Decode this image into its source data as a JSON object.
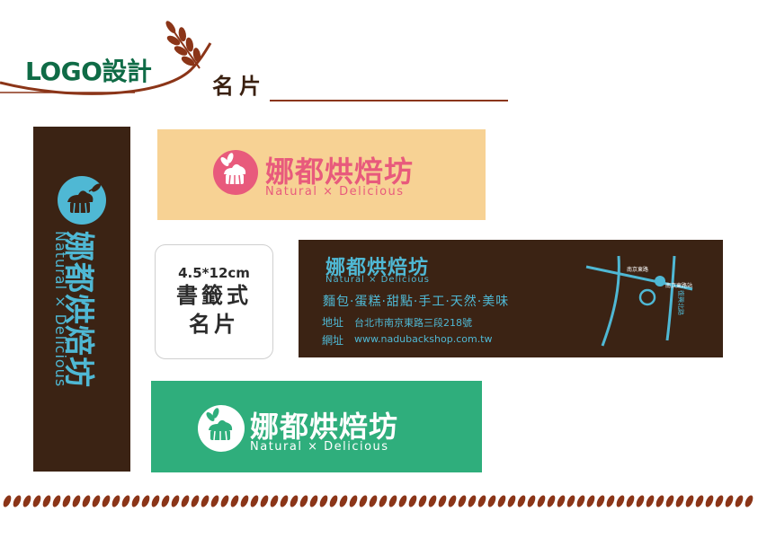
{
  "header": {
    "title": "LOGO設計",
    "subtitle": "名片"
  },
  "brand": {
    "name": "娜都烘焙坊",
    "tagline": "Natural × Delicious"
  },
  "spec": {
    "size": "4.5*12cm",
    "line1": "書籤式",
    "line2": "名片"
  },
  "dark_card": {
    "products": "麵包·蛋糕·甜點·手工·天然·美味",
    "address_label": "地址",
    "address": "台北市南京東路三段218號",
    "website_label": "網址",
    "website": "www.nadubackshop.com.tw",
    "map_labels": [
      "南京東路",
      "南京東路站",
      "復興北路"
    ]
  },
  "colors": {
    "brown": "#3b2314",
    "peach": "#f7d294",
    "green": "#2fae7c",
    "pink": "#e85a7c",
    "cyan": "#4fb8d4",
    "darkgreen": "#0f6b46"
  }
}
